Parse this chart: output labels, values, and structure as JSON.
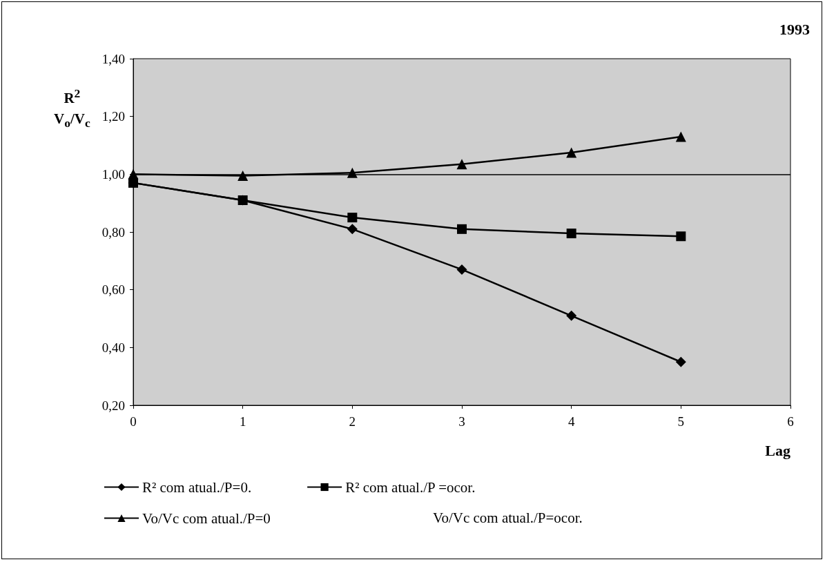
{
  "chart_data": {
    "type": "line",
    "title": "1993",
    "xlabel": "Lag",
    "ylabel": "R$^{2}$\nV$_{o}$/V$_{c}$",
    "x": [
      0,
      1,
      2,
      3,
      4,
      5
    ],
    "series": [
      {
        "name": "R² com atual./P=0.",
        "color": "#000000",
        "marker": "diamond",
        "values": [
          0.97,
          0.91,
          0.81,
          0.67,
          0.51,
          0.35
        ]
      },
      {
        "name": "R² com atual./P =ocor.",
        "color": "#000000",
        "marker": "square",
        "values": [
          0.97,
          0.91,
          0.85,
          0.81,
          0.795,
          0.785
        ]
      },
      {
        "name": "Vo/Vc com atual./P=0",
        "color": "#000000",
        "marker": "triangle",
        "values": [
          1.0,
          0.995,
          1.005,
          1.035,
          1.075,
          1.13
        ]
      }
    ],
    "ref_lines": [
      {
        "axis": "y",
        "value": 1.0,
        "color": "#000000"
      }
    ],
    "annotations": [
      "Vo/Vc com atual./P=ocor."
    ],
    "xlim": [
      0,
      6
    ],
    "xticks": [
      0,
      1,
      2,
      3,
      4,
      5,
      6
    ],
    "ylim": [
      0.2,
      1.4
    ],
    "yticks": [
      {
        "value": 0.2,
        "label": "0,20"
      },
      {
        "value": 0.4,
        "label": "0,40"
      },
      {
        "value": 0.6,
        "label": "0,60"
      },
      {
        "value": 0.8,
        "label": "0,80"
      },
      {
        "value": 1.0,
        "label": "1,00"
      },
      {
        "value": 1.2,
        "label": "1,20"
      },
      {
        "value": 1.4,
        "label": "1,40"
      }
    ],
    "grid": false,
    "legend": "bottom",
    "line_style": "solid"
  }
}
